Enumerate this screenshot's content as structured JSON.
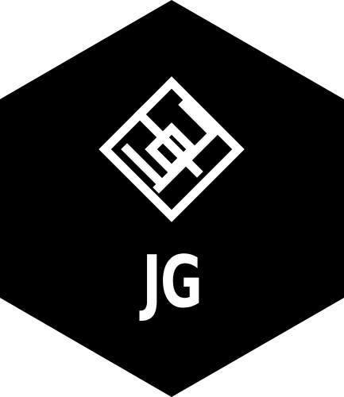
{
  "logo": {
    "monogram": "JG",
    "badge_shape": "hexagon",
    "emblem_icon": "interlocking-diamond-maze-icon",
    "colors": {
      "badge": "#000000",
      "foreground": "#ffffff",
      "background": "#ffffff"
    }
  }
}
